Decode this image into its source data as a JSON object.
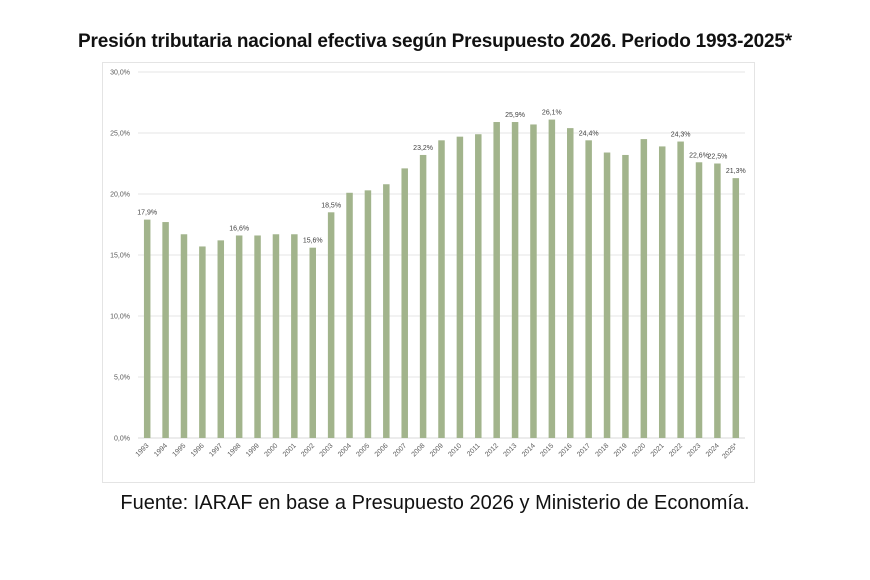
{
  "page": {
    "title": "Presión tributaria nacional efectiva según Presupuesto 2026. Periodo 1993-2025*",
    "source": "Fuente: IARAF en base a Presupuesto 2026 y Ministerio de Economía."
  },
  "colors": {
    "bar": "#a2b48c",
    "grid": "#e6e6e6",
    "axis": "#d9d9d9"
  },
  "chart_data": {
    "type": "bar",
    "title": "Presión tributaria nacional efectiva según Presupuesto 2026. Periodo 1993-2025*",
    "xlabel": "",
    "ylabel": "",
    "ylim": [
      0,
      30
    ],
    "yticks": [
      0,
      5,
      10,
      15,
      20,
      25,
      30
    ],
    "ytick_labels": [
      "0,0%",
      "5,0%",
      "10,0%",
      "15,0%",
      "20,0%",
      "25,0%",
      "30,0%"
    ],
    "grid": true,
    "legend": "none",
    "categories": [
      "1993",
      "1994",
      "1995",
      "1996",
      "1997",
      "1998",
      "1999",
      "2000",
      "2001",
      "2002",
      "2003",
      "2004",
      "2005",
      "2006",
      "2007",
      "2008",
      "2009",
      "2010",
      "2011",
      "2012",
      "2013",
      "2014",
      "2015",
      "2016",
      "2017",
      "2018",
      "2019",
      "2020",
      "2021",
      "2022",
      "2023",
      "2024",
      "2025*"
    ],
    "values": [
      17.9,
      17.7,
      16.7,
      15.7,
      16.2,
      16.6,
      16.6,
      16.7,
      16.7,
      15.6,
      18.5,
      20.1,
      20.3,
      20.8,
      22.1,
      23.2,
      24.4,
      24.7,
      24.9,
      25.9,
      25.9,
      25.7,
      26.1,
      25.4,
      24.4,
      23.4,
      23.2,
      24.5,
      23.9,
      24.3,
      22.6,
      22.5,
      21.3
    ],
    "data_labels": {
      "1993": "17,9%",
      "1998": "16,6%",
      "2002": "15,6%",
      "2003": "18,5%",
      "2008": "23,2%",
      "2013": "25,9%",
      "2015": "26,1%",
      "2017": "24,4%",
      "2022": "24,3%",
      "2023": "22,6%",
      "2024": "22,5%",
      "2025*": "21,3%"
    }
  }
}
